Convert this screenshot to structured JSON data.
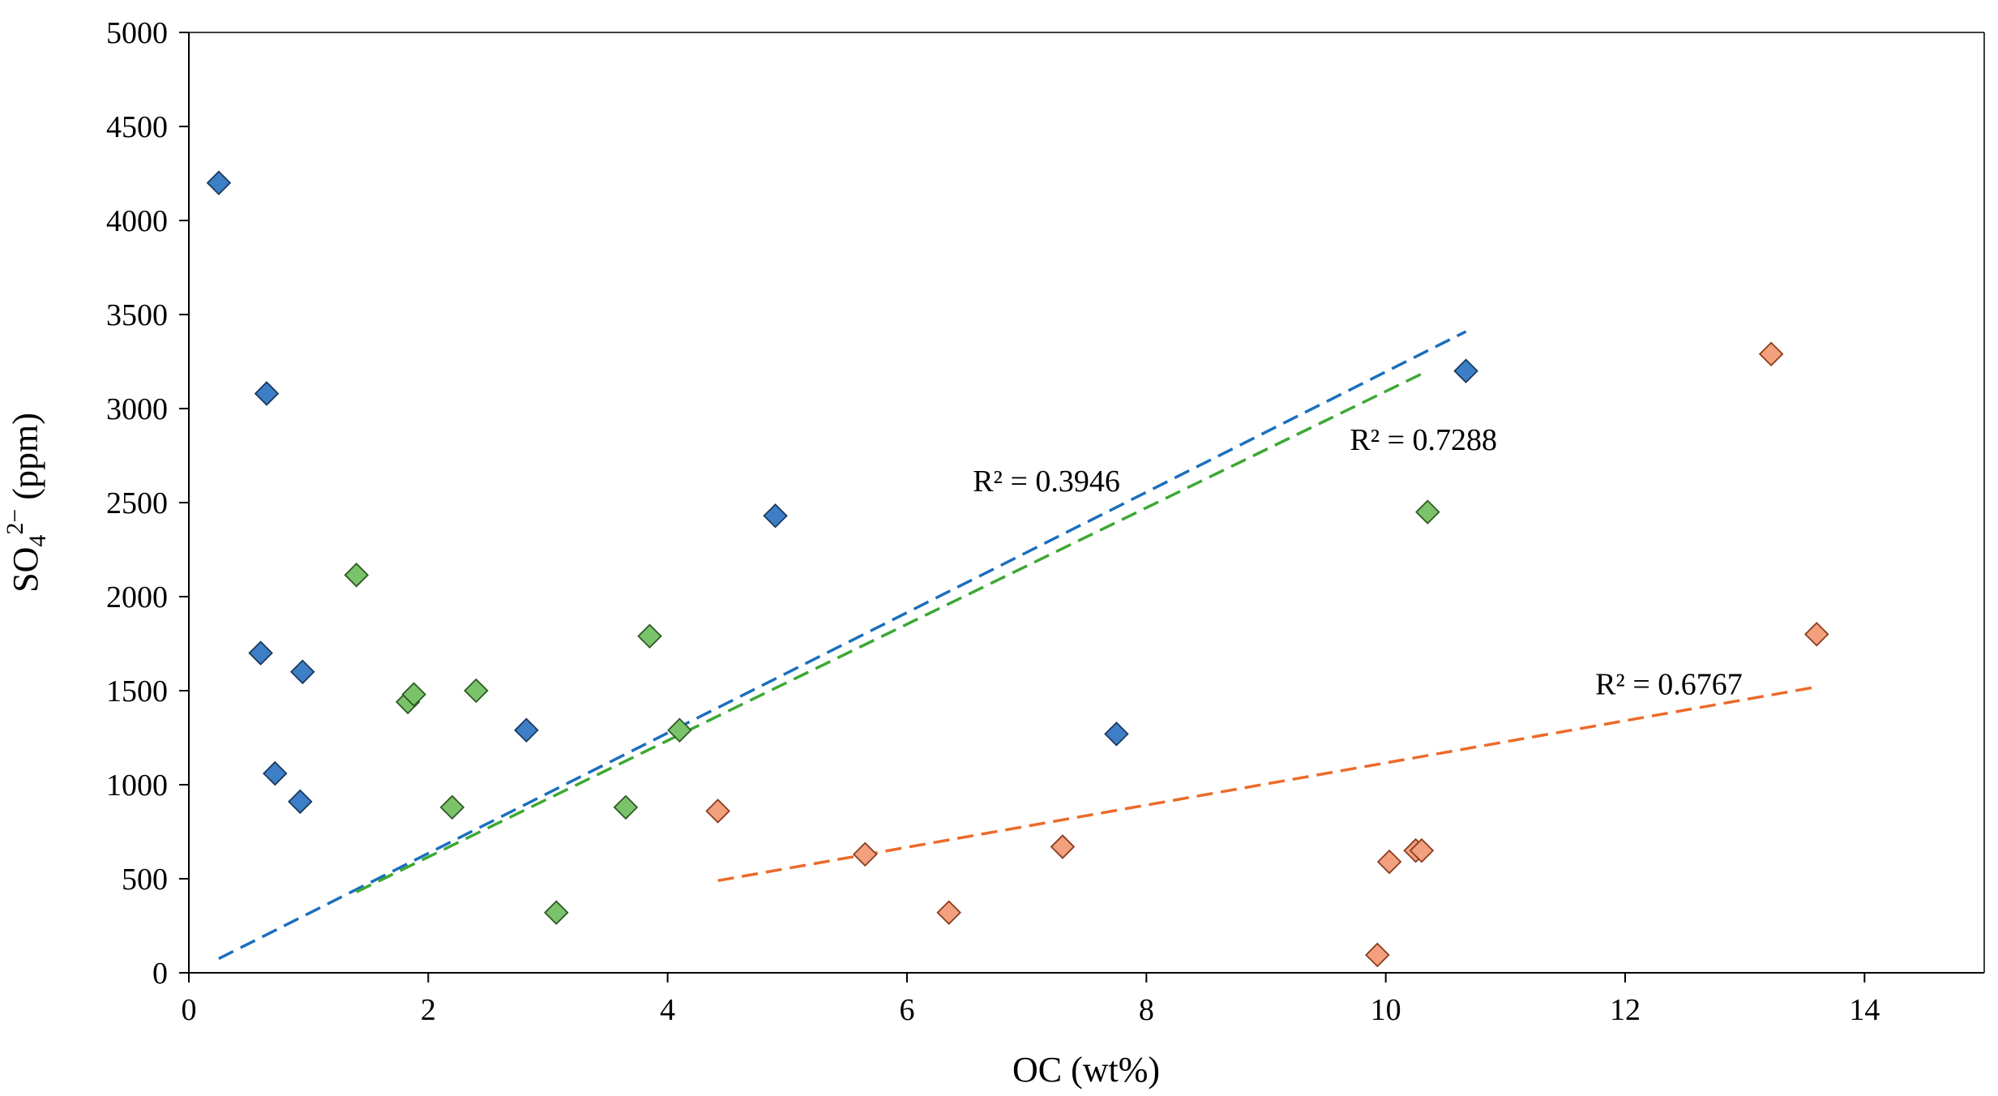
{
  "chart_data": {
    "type": "scatter",
    "title": "",
    "xlabel": "OC (wt%)",
    "ylabel": {
      "base": "SO",
      "sub": "4",
      "sup": "2−",
      "rest": " (ppm)"
    },
    "xlim": [
      0,
      15
    ],
    "ylim": [
      0,
      5000
    ],
    "xticks": [
      0,
      2,
      4,
      6,
      8,
      10,
      12,
      14
    ],
    "yticks": [
      0,
      500,
      1000,
      1500,
      2000,
      2500,
      3000,
      3500,
      4000,
      4500,
      5000
    ],
    "grid": false,
    "legend": "none",
    "series": [
      {
        "name": "blue",
        "color": "#3d7fc6",
        "edge": "#1b3a5c",
        "x": [
          0.25,
          0.65,
          0.6,
          0.95,
          0.72,
          0.93,
          2.82,
          4.9,
          7.75,
          10.67
        ],
        "y": [
          4200,
          3080,
          1700,
          1600,
          1060,
          910,
          1290,
          2430,
          1270,
          3200
        ],
        "trend": {
          "x": [
            0.25,
            10.67
          ],
          "y": [
            75,
            3410
          ],
          "color": "#1a6fbd",
          "r2": "R² = 0.3946"
        }
      },
      {
        "name": "green",
        "color": "#7ac36a",
        "edge": "#2e5a24",
        "x": [
          1.4,
          1.83,
          1.88,
          2.4,
          2.2,
          3.85,
          4.1,
          3.65,
          3.07,
          10.35
        ],
        "y": [
          2115,
          1440,
          1480,
          1500,
          880,
          1790,
          1290,
          880,
          320,
          2450
        ],
        "trend": {
          "x": [
            1.4,
            10.35
          ],
          "y": [
            430,
            3200
          ],
          "color": "#3da832",
          "r2": "R² = 0.7288"
        }
      },
      {
        "name": "orange",
        "color": "#f2a07e",
        "edge": "#8a3d1e",
        "x": [
          4.42,
          5.65,
          6.35,
          7.3,
          9.93,
          10.03,
          10.25,
          10.3,
          13.22,
          13.6
        ],
        "y": [
          860,
          630,
          320,
          670,
          95,
          590,
          650,
          650,
          3290,
          1800
        ],
        "trend": {
          "x": [
            4.42,
            13.6
          ],
          "y": [
            490,
            1520
          ],
          "color": "#ec6a2a",
          "r2": "R² = 0.6767"
        }
      }
    ]
  }
}
